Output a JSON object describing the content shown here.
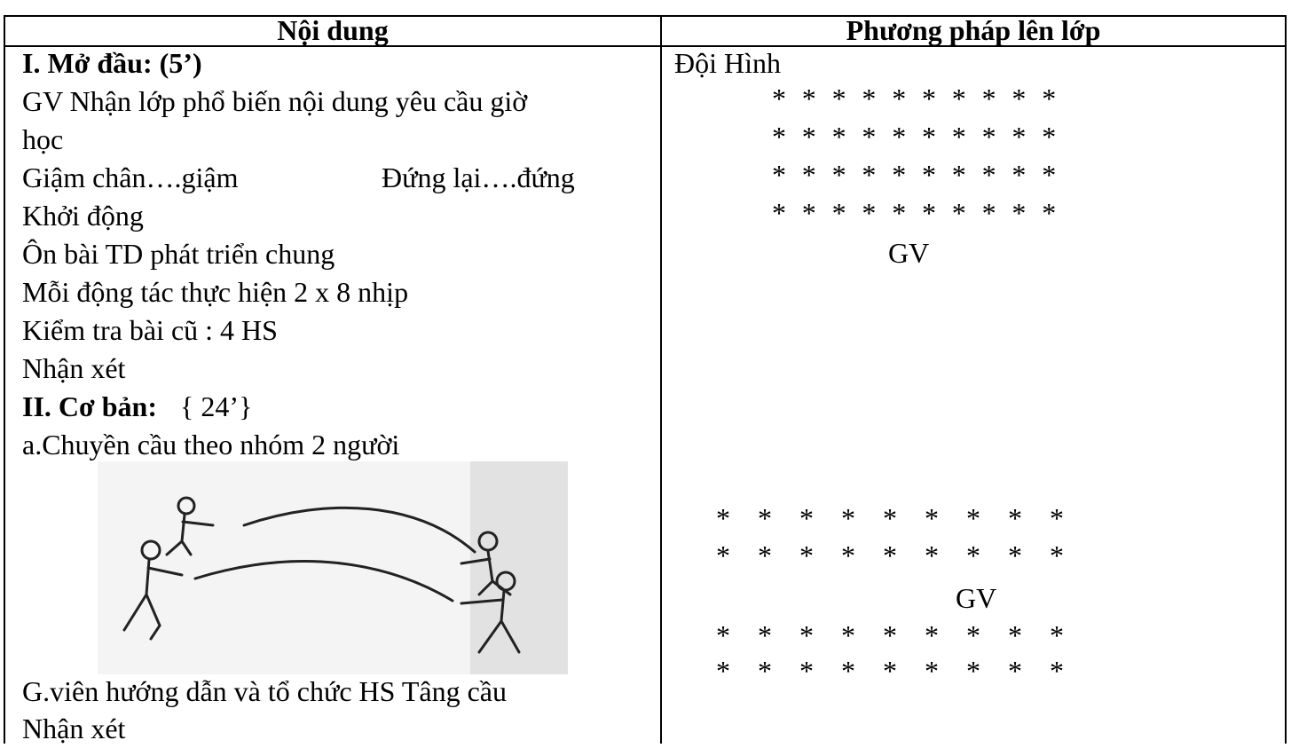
{
  "table": {
    "headers": [
      "Nội dung",
      "Phương pháp lên lớp"
    ],
    "content": [
      "I. Mở đầu: (5’)",
      "GV Nhận lớp phổ biến nội dung yêu cầu giờ",
      "học",
      [
        "Giậm chân….giậm",
        "Đứng lại….đứng"
      ],
      "Khởi động",
      "Ôn bài TD phát triển chung",
      "Mỗi động tác thực hiện 2 x 8 nhịp",
      "Kiểm tra bài cũ : 4 HS",
      "Nhận xét",
      [
        "II. Cơ bản:",
        "{ 24’}"
      ],
      "a.Chuyền cầu theo nhóm 2 người",
      "G.viên hướng dẫn và tổ chức HS Tâng cầu",
      "Nhận xét"
    ],
    "method": {
      "title": "Đội Hình",
      "formation1": {
        "rows": [
          "* * * * * * * * * *",
          "* * * * * * * * * *",
          "* * * * * * * * * *",
          "* * * * * * * * * *"
        ],
        "teacher": "GV"
      },
      "formation2": {
        "rows_top": [
          "* * * * * * * * *",
          "* * * * * * * * *"
        ],
        "teacher": "GV",
        "rows_bottom": [
          "* * * * * * * * *",
          "* * * * * * * * *"
        ]
      }
    }
  }
}
